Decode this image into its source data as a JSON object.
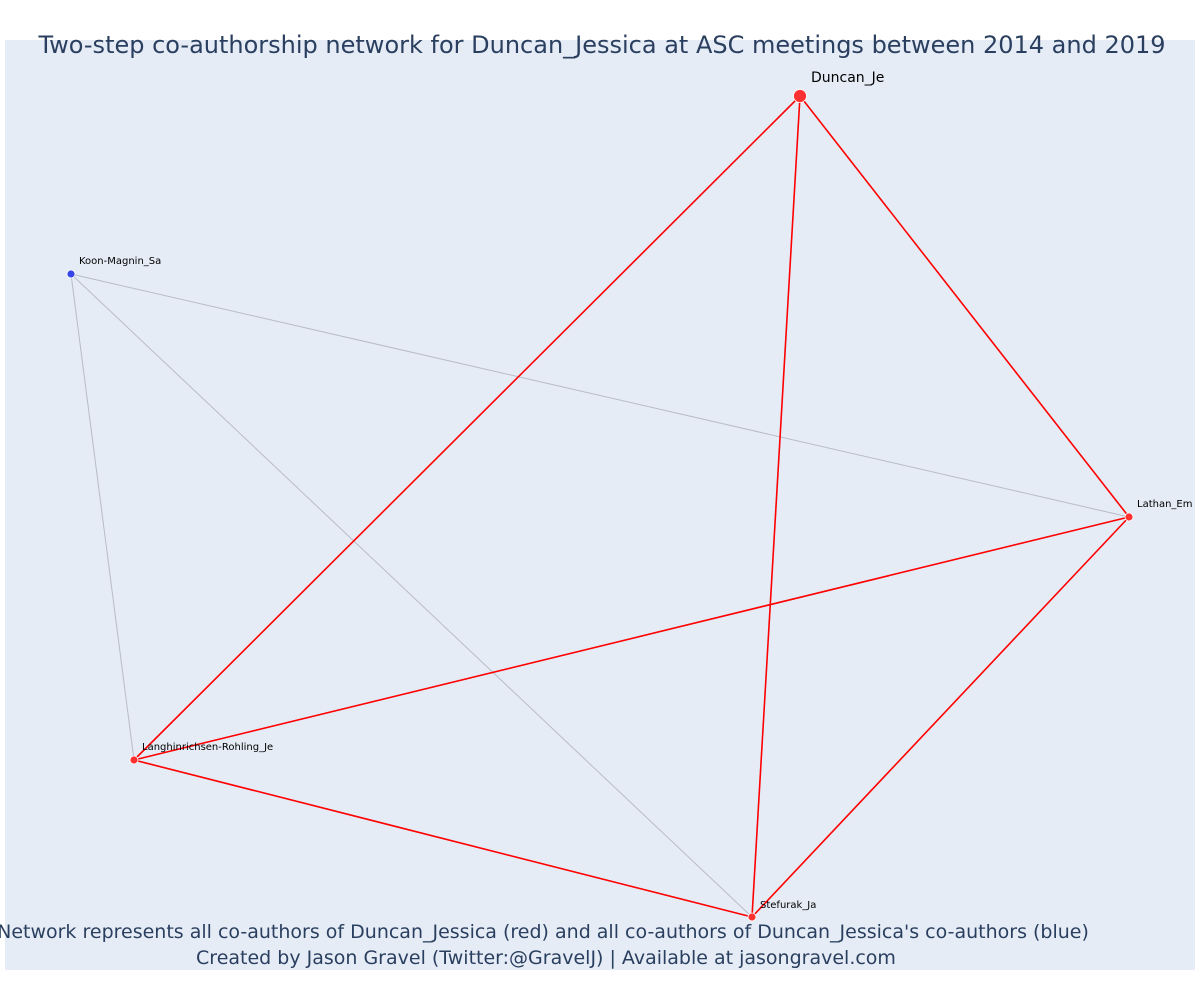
{
  "title": "Two-step co-authorship network for Duncan_Jessica at ASC meetings between 2014 and 2019",
  "caption": {
    "line1": "Network represents all co-authors of Duncan_Jessica (red) and all co-authors of Duncan_Jessica's co-authors (blue)",
    "line2": "Created by Jason Gravel (Twitter:@GravelJ) | Available at jasongravel.com"
  },
  "colors": {
    "background": "#e5ecf6",
    "primary_node": "#ff3030",
    "secondary_node": "#3545e8",
    "primary_edge": "#ff0000",
    "secondary_edge": "#b8bcc8"
  },
  "nodes": [
    {
      "id": "duncan",
      "label": "Duncan_Je",
      "group": "focal"
    },
    {
      "id": "koon",
      "label": "Koon-Magnin_Sa",
      "group": "second-step"
    },
    {
      "id": "lathan",
      "label": "Lathan_Em",
      "group": "co-author"
    },
    {
      "id": "langhinrichsen",
      "label": "Langhinrichsen-Rohling_Je",
      "group": "co-author"
    },
    {
      "id": "stefurak",
      "label": "Stefurak_Ja",
      "group": "co-author"
    }
  ],
  "edges": [
    {
      "source": "duncan",
      "target": "lathan",
      "type": "primary"
    },
    {
      "source": "duncan",
      "target": "langhinrichsen",
      "type": "primary"
    },
    {
      "source": "duncan",
      "target": "stefurak",
      "type": "primary"
    },
    {
      "source": "lathan",
      "target": "langhinrichsen",
      "type": "primary"
    },
    {
      "source": "lathan",
      "target": "stefurak",
      "type": "primary"
    },
    {
      "source": "langhinrichsen",
      "target": "stefurak",
      "type": "primary"
    },
    {
      "source": "koon",
      "target": "lathan",
      "type": "secondary"
    },
    {
      "source": "koon",
      "target": "langhinrichsen",
      "type": "secondary"
    },
    {
      "source": "koon",
      "target": "stefurak",
      "type": "secondary"
    }
  ]
}
